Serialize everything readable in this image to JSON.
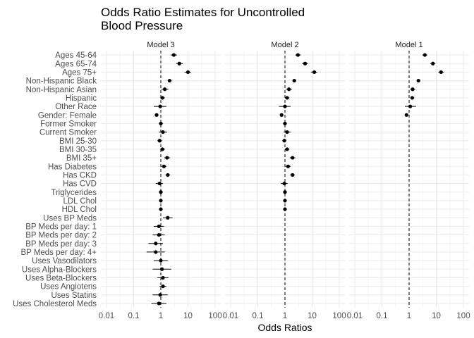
{
  "chart_data": {
    "type": "scatter",
    "subtype": "forest-plot",
    "title": "Odds Ratio Estimates for Uncontrolled Blood Pressure",
    "xlabel": "Odds Ratios",
    "ylabel": "",
    "x_scale": "log10",
    "xlim": [
      0.01,
      100
    ],
    "x_ticks": [
      "0.01",
      "0.1",
      "1",
      "10",
      "100"
    ],
    "reference_line": 1,
    "grid": true,
    "legend": "none",
    "point_color": "#000000",
    "grid_color": "#ebebeb",
    "categories": [
      "Ages 45-64",
      "Ages 65-74",
      "Ages 75+",
      "Non-Hispanic Black",
      "Non-Hispanic Asian",
      "Hispanic",
      "Other Race",
      "Gender: Female",
      "Former Smoker",
      "Current Smoker",
      "BMI 25-30",
      "BMI 30-35",
      "BMI 35+",
      "Has Diabetes",
      "Has CKD",
      "Has CVD",
      "Triglycerides",
      "LDL Chol",
      "HDL Chol",
      "Uses BP Meds",
      "BP Meds per day: 1",
      "BP Meds per day: 2",
      "BP Meds per day: 3",
      "BP Meds per day: 4+",
      "Uses Vasodilators",
      "Uses Alpha-Blockers",
      "Uses Beta-Blockers",
      "Uses Angiotens",
      "Uses Statins",
      "Uses Cholesterol Meds"
    ],
    "panels": [
      {
        "name": "Model 3",
        "estimates": [
          {
            "or": 3.0,
            "lo": 2.3,
            "hi": 3.9
          },
          {
            "or": 4.8,
            "lo": 3.7,
            "hi": 6.4
          },
          {
            "or": 10.0,
            "lo": 7.5,
            "hi": 13.0
          },
          {
            "or": 2.1,
            "lo": 1.8,
            "hi": 2.5
          },
          {
            "or": 1.4,
            "lo": 1.05,
            "hi": 1.9
          },
          {
            "or": 1.15,
            "lo": 0.95,
            "hi": 1.4
          },
          {
            "or": 0.95,
            "lo": 0.55,
            "hi": 1.6
          },
          {
            "or": 0.7,
            "lo": 0.6,
            "hi": 0.82
          },
          {
            "or": 1.0,
            "lo": 0.85,
            "hi": 1.2
          },
          {
            "or": 1.2,
            "lo": 0.85,
            "hi": 1.7
          },
          {
            "or": 0.9,
            "lo": 0.75,
            "hi": 1.1
          },
          {
            "or": 1.15,
            "lo": 0.95,
            "hi": 1.4
          },
          {
            "or": 1.7,
            "lo": 1.35,
            "hi": 2.2
          },
          {
            "or": 1.3,
            "lo": 1.05,
            "hi": 1.6
          },
          {
            "or": 1.8,
            "lo": 1.5,
            "hi": 2.2
          },
          {
            "or": 0.9,
            "lo": 0.65,
            "hi": 1.2
          },
          {
            "or": 1.0,
            "lo": 0.95,
            "hi": 1.05
          },
          {
            "or": 1.0,
            "lo": 0.95,
            "hi": 1.05
          },
          {
            "or": 1.0,
            "lo": 0.95,
            "hi": 1.05
          },
          {
            "or": 1.8,
            "lo": 1.2,
            "hi": 2.7
          },
          {
            "or": 0.85,
            "lo": 0.55,
            "hi": 1.3
          },
          {
            "or": 0.85,
            "lo": 0.5,
            "hi": 1.4
          },
          {
            "or": 0.65,
            "lo": 0.35,
            "hi": 1.2
          },
          {
            "or": 0.65,
            "lo": 0.3,
            "hi": 1.4
          },
          {
            "or": 1.0,
            "lo": 0.55,
            "hi": 1.8
          },
          {
            "or": 1.1,
            "lo": 0.5,
            "hi": 2.4
          },
          {
            "or": 1.2,
            "lo": 0.75,
            "hi": 1.9
          },
          {
            "or": 1.2,
            "lo": 0.9,
            "hi": 1.6
          },
          {
            "or": 0.95,
            "lo": 0.5,
            "hi": 1.8
          },
          {
            "or": 0.85,
            "lo": 0.45,
            "hi": 1.6
          }
        ]
      },
      {
        "name": "Model 2",
        "estimates": [
          {
            "or": 3.0,
            "lo": 2.4,
            "hi": 3.8
          },
          {
            "or": 5.5,
            "lo": 4.3,
            "hi": 7.0
          },
          {
            "or": 12.0,
            "lo": 9.0,
            "hi": 15.5
          },
          {
            "or": 2.2,
            "lo": 1.9,
            "hi": 2.6
          },
          {
            "or": 1.4,
            "lo": 1.1,
            "hi": 1.8
          },
          {
            "or": 1.2,
            "lo": 1.0,
            "hi": 1.45
          },
          {
            "or": 1.0,
            "lo": 0.6,
            "hi": 1.6
          },
          {
            "or": 0.75,
            "lo": 0.65,
            "hi": 0.88
          },
          {
            "or": 1.0,
            "lo": 0.85,
            "hi": 1.15
          },
          {
            "or": 1.2,
            "lo": 0.9,
            "hi": 1.6
          },
          {
            "or": 0.95,
            "lo": 0.8,
            "hi": 1.1
          },
          {
            "or": 1.2,
            "lo": 1.0,
            "hi": 1.45
          },
          {
            "or": 1.9,
            "lo": 1.5,
            "hi": 2.4
          },
          {
            "or": 1.3,
            "lo": 1.05,
            "hi": 1.6
          },
          {
            "or": 1.9,
            "lo": 1.55,
            "hi": 2.3
          },
          {
            "or": 0.95,
            "lo": 0.7,
            "hi": 1.25
          },
          {
            "or": 1.0,
            "lo": 0.95,
            "hi": 1.05
          },
          {
            "or": 1.0,
            "lo": 0.95,
            "hi": 1.05
          },
          {
            "or": 1.0,
            "lo": 0.95,
            "hi": 1.05
          }
        ]
      },
      {
        "name": "Model 1",
        "estimates": [
          {
            "or": 3.8,
            "lo": 3.1,
            "hi": 4.6
          },
          {
            "or": 7.5,
            "lo": 6.0,
            "hi": 9.2
          },
          {
            "or": 15.0,
            "lo": 12.0,
            "hi": 19.0
          },
          {
            "or": 2.2,
            "lo": 1.9,
            "hi": 2.6
          },
          {
            "or": 1.35,
            "lo": 1.1,
            "hi": 1.7
          },
          {
            "or": 1.3,
            "lo": 1.1,
            "hi": 1.55
          },
          {
            "or": 1.1,
            "lo": 0.7,
            "hi": 1.8
          },
          {
            "or": 0.8,
            "lo": 0.7,
            "hi": 0.92
          }
        ]
      }
    ]
  }
}
